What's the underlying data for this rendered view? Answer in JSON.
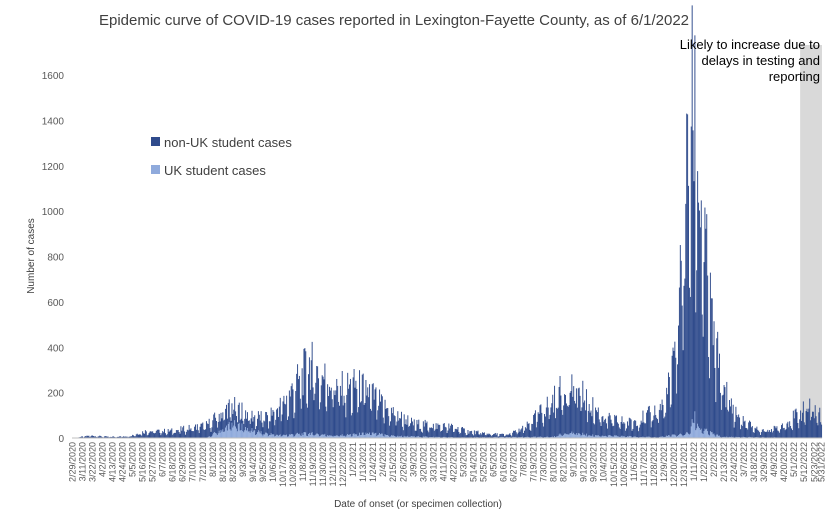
{
  "chart_data": {
    "type": "bar",
    "title": "Epidemic curve of COVID-19 cases reported in Lexington-Fayette County, as of 6/1/2022",
    "xlabel": "Date of onset (or specimen collection)",
    "ylabel": "Number of cases",
    "ylim": [
      0,
      1600
    ],
    "yticks": [
      0,
      200,
      400,
      600,
      800,
      1000,
      1200,
      1400,
      1600
    ],
    "x_start": "2020-02-29",
    "x_end": "2022-05-31",
    "x_tick_labels": [
      "2/29/2020",
      "3/11/2020",
      "3/22/2020",
      "4/2/2020",
      "4/13/2020",
      "4/24/2020",
      "5/5/2020",
      "5/16/2020",
      "5/27/2020",
      "6/7/2020",
      "6/18/2020",
      "6/29/2020",
      "7/10/2020",
      "7/21/2020",
      "8/1/2020",
      "8/12/2020",
      "8/23/2020",
      "9/3/2020",
      "9/14/2020",
      "9/25/2020",
      "10/6/2020",
      "10/17/2020",
      "10/28/2020",
      "11/8/2020",
      "11/19/2020",
      "11/30/2020",
      "12/11/2020",
      "12/22/2020",
      "1/2/2021",
      "1/13/2021",
      "1/24/2021",
      "2/4/2021",
      "2/15/2021",
      "2/26/2021",
      "3/9/2021",
      "3/20/2021",
      "3/31/2021",
      "4/11/2021",
      "4/22/2021",
      "5/3/2021",
      "5/14/2021",
      "5/25/2021",
      "6/5/2021",
      "6/16/2021",
      "6/27/2021",
      "7/8/2021",
      "7/19/2021",
      "7/30/2021",
      "8/10/2021",
      "8/21/2021",
      "9/1/2021",
      "9/12/2021",
      "9/23/2021",
      "10/4/2021",
      "10/15/2021",
      "10/26/2021",
      "11/6/2021",
      "11/17/2021",
      "11/28/2021",
      "12/9/2021",
      "12/20/2021",
      "12/31/2021",
      "1/11/2022",
      "1/22/2022",
      "2/2/2022",
      "2/13/2022",
      "2/24/2022",
      "3/7/2022",
      "3/18/2022",
      "3/29/2022",
      "4/9/2022",
      "4/20/2022",
      "5/1/2022",
      "5/12/2022",
      "5/23/2022",
      "5/31/2022"
    ],
    "series": [
      {
        "name": "non-UK student cases",
        "color": "#2f4b8c",
        "points": [
          [
            "2020-02-29",
            0
          ],
          [
            "2020-03-20",
            10
          ],
          [
            "2020-04-10",
            5
          ],
          [
            "2020-05-01",
            8
          ],
          [
            "2020-05-20",
            30
          ],
          [
            "2020-06-15",
            30
          ],
          [
            "2020-07-10",
            45
          ],
          [
            "2020-08-01",
            60
          ],
          [
            "2020-08-15",
            80
          ],
          [
            "2020-09-01",
            70
          ],
          [
            "2020-09-15",
            60
          ],
          [
            "2020-10-01",
            75
          ],
          [
            "2020-10-20",
            150
          ],
          [
            "2020-11-05",
            240
          ],
          [
            "2020-11-15",
            300
          ],
          [
            "2020-11-25",
            260
          ],
          [
            "2020-12-05",
            240
          ],
          [
            "2020-12-20",
            200
          ],
          [
            "2021-01-05",
            210
          ],
          [
            "2021-01-20",
            180
          ],
          [
            "2021-02-05",
            120
          ],
          [
            "2021-02-20",
            90
          ],
          [
            "2021-03-10",
            55
          ],
          [
            "2021-04-01",
            50
          ],
          [
            "2021-04-20",
            45
          ],
          [
            "2021-05-10",
            25
          ],
          [
            "2021-06-01",
            15
          ],
          [
            "2021-06-20",
            10
          ],
          [
            "2021-07-10",
            40
          ],
          [
            "2021-07-30",
            120
          ],
          [
            "2021-08-15",
            180
          ],
          [
            "2021-08-30",
            200
          ],
          [
            "2021-09-10",
            170
          ],
          [
            "2021-09-25",
            110
          ],
          [
            "2021-10-10",
            70
          ],
          [
            "2021-11-01",
            60
          ],
          [
            "2021-11-20",
            90
          ],
          [
            "2021-12-10",
            140
          ],
          [
            "2021-12-20",
            300
          ],
          [
            "2021-12-28",
            700
          ],
          [
            "2022-01-02",
            1000
          ],
          [
            "2022-01-06",
            1250
          ],
          [
            "2022-01-10",
            1340
          ],
          [
            "2022-01-14",
            1200
          ],
          [
            "2022-01-20",
            900
          ],
          [
            "2022-01-28",
            550
          ],
          [
            "2022-02-08",
            280
          ],
          [
            "2022-02-20",
            140
          ],
          [
            "2022-03-05",
            70
          ],
          [
            "2022-03-25",
            30
          ],
          [
            "2022-04-10",
            40
          ],
          [
            "2022-04-25",
            70
          ],
          [
            "2022-05-08",
            110
          ],
          [
            "2022-05-20",
            130
          ],
          [
            "2022-05-31",
            90
          ]
        ]
      },
      {
        "name": "UK student cases",
        "color": "#8faadc",
        "points": [
          [
            "2020-02-29",
            0
          ],
          [
            "2020-07-25",
            0
          ],
          [
            "2020-08-08",
            30
          ],
          [
            "2020-08-22",
            60
          ],
          [
            "2020-09-05",
            45
          ],
          [
            "2020-09-25",
            20
          ],
          [
            "2020-10-15",
            12
          ],
          [
            "2020-11-15",
            20
          ],
          [
            "2020-12-15",
            10
          ],
          [
            "2021-01-20",
            20
          ],
          [
            "2021-02-20",
            8
          ],
          [
            "2021-05-01",
            2
          ],
          [
            "2021-08-10",
            5
          ],
          [
            "2021-08-25",
            25
          ],
          [
            "2021-09-20",
            12
          ],
          [
            "2021-12-01",
            3
          ],
          [
            "2022-01-05",
            20
          ],
          [
            "2022-01-12",
            90
          ],
          [
            "2022-01-18",
            40
          ],
          [
            "2022-02-10",
            5
          ],
          [
            "2022-05-31",
            0
          ]
        ]
      }
    ],
    "annotation": {
      "text_lines": [
        "Likely to increase due to",
        "delays in testing and",
        "reporting"
      ],
      "start": "2022-05-08",
      "end": "2022-05-31",
      "color": "#d9d9d9"
    },
    "legend": "inside-left"
  }
}
